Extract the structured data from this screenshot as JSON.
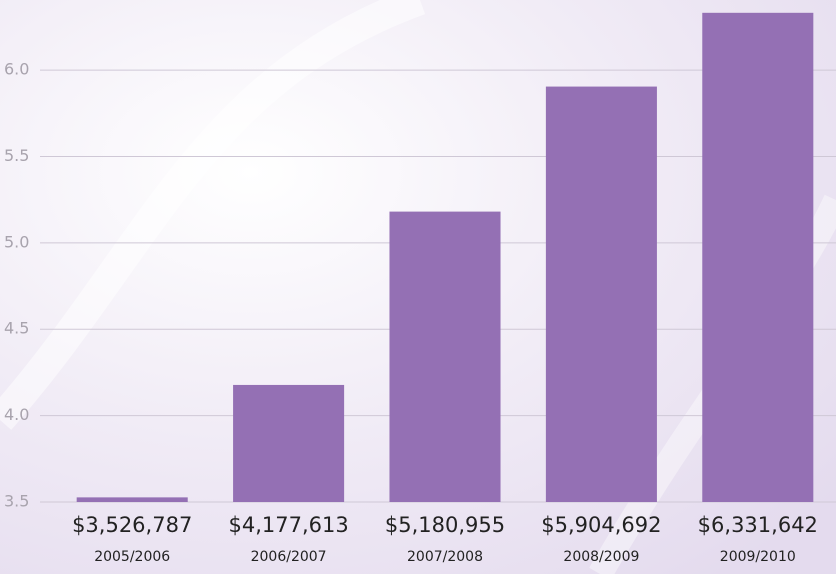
{
  "chart_data": {
    "type": "bar",
    "categories": [
      "2005/2006",
      "2006/2007",
      "2007/2008",
      "2008/2009",
      "2009/2010"
    ],
    "values": [
      3.526787,
      4.177613,
      5.180955,
      5.904692,
      6.331642
    ],
    "value_labels": [
      "$3,526,787",
      "$4,177,613",
      "$5,180,955",
      "$5,904,692",
      "$6,331,642"
    ],
    "color": "#9470b4",
    "ylim": [
      3.5,
      6.4
    ],
    "yticks": [
      {
        "value": 3.5,
        "label": "3.5"
      },
      {
        "value": 4,
        "label": "4.0"
      },
      {
        "value": 4.5,
        "label": "4.5"
      },
      {
        "value": 5,
        "label": "5.0"
      },
      {
        "value": 5.5,
        "label": "5.5"
      },
      {
        "value": 6,
        "label": "6.0"
      }
    ],
    "grid": true
  }
}
